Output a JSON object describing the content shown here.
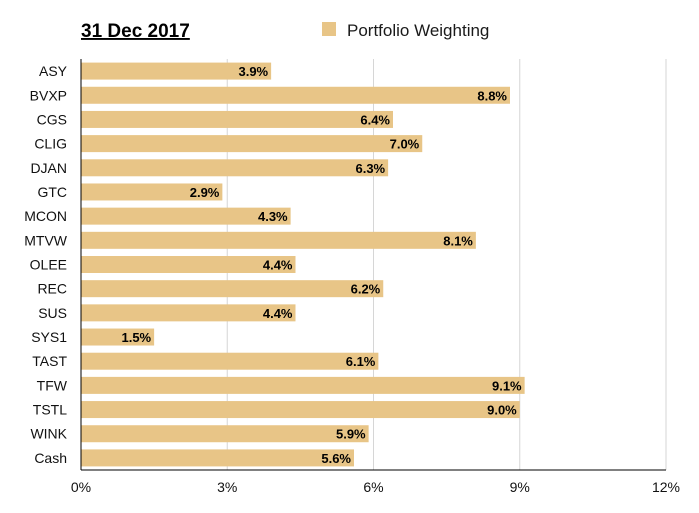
{
  "chart_data": {
    "type": "bar",
    "orientation": "horizontal",
    "title": "31 Dec 2017",
    "legend": {
      "position": "top-right",
      "entries": [
        "Portfolio Weighting"
      ]
    },
    "categories": [
      "ASY",
      "BVXP",
      "CGS",
      "CLIG",
      "DJAN",
      "GTC",
      "MCON",
      "MTVW",
      "OLEE",
      "REC",
      "SUS",
      "SYS1",
      "TAST",
      "TFW",
      "TSTL",
      "WINK",
      "Cash"
    ],
    "series": [
      {
        "name": "Portfolio Weighting",
        "color": "#e8c587",
        "values": [
          3.9,
          8.8,
          6.4,
          7.0,
          6.3,
          2.9,
          4.3,
          8.1,
          4.4,
          6.2,
          4.4,
          1.5,
          6.1,
          9.1,
          9.0,
          5.9,
          5.6
        ],
        "labels": [
          "3.9%",
          "8.8%",
          "6.4%",
          "7.0%",
          "6.3%",
          "2.9%",
          "4.3%",
          "8.1%",
          "4.4%",
          "6.2%",
          "4.4%",
          "1.5%",
          "6.1%",
          "9.1%",
          "9.0%",
          "5.9%",
          "5.6%"
        ]
      }
    ],
    "x_ticks": [
      "0%",
      "3%",
      "6%",
      "9%",
      "12%"
    ],
    "xlim": [
      0,
      12
    ],
    "grid": true,
    "grid_color": "#d6d6d6",
    "axis_color": "#000000"
  }
}
